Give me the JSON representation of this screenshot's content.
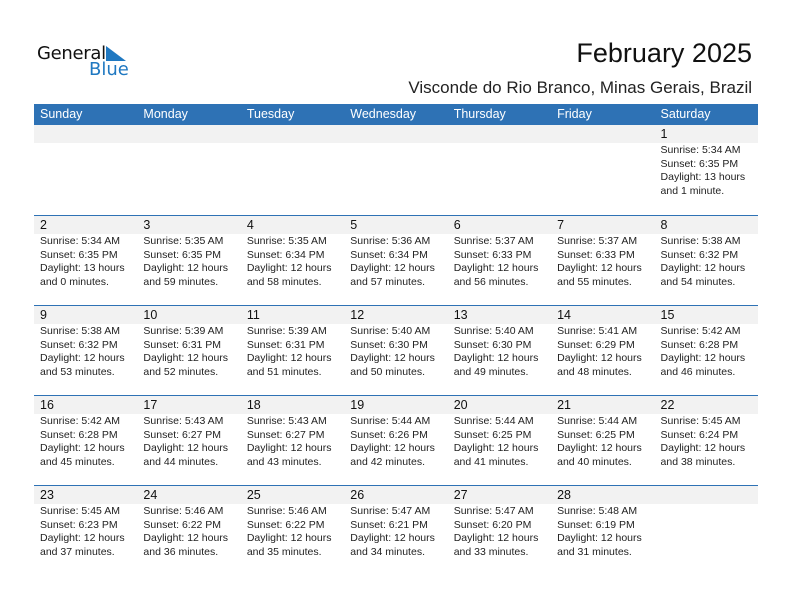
{
  "logo": {
    "word1": "General",
    "word2": "Blue",
    "accent": "#1f78c1"
  },
  "header": {
    "title": "February 2025",
    "location": "Visconde do Rio Branco, Minas Gerais, Brazil"
  },
  "colors": {
    "header_bg": "#2e72b5",
    "date_band": "#f2f2f2"
  },
  "weekdays": [
    "Sunday",
    "Monday",
    "Tuesday",
    "Wednesday",
    "Thursday",
    "Friday",
    "Saturday"
  ],
  "weeks": [
    [
      null,
      null,
      null,
      null,
      null,
      null,
      {
        "day": "1",
        "sunrise": "Sunrise: 5:34 AM",
        "sunset": "Sunset: 6:35 PM",
        "daylight1": "Daylight: 13 hours",
        "daylight2": "and 1 minute."
      }
    ],
    [
      {
        "day": "2",
        "sunrise": "Sunrise: 5:34 AM",
        "sunset": "Sunset: 6:35 PM",
        "daylight1": "Daylight: 13 hours",
        "daylight2": "and 0 minutes."
      },
      {
        "day": "3",
        "sunrise": "Sunrise: 5:35 AM",
        "sunset": "Sunset: 6:35 PM",
        "daylight1": "Daylight: 12 hours",
        "daylight2": "and 59 minutes."
      },
      {
        "day": "4",
        "sunrise": "Sunrise: 5:35 AM",
        "sunset": "Sunset: 6:34 PM",
        "daylight1": "Daylight: 12 hours",
        "daylight2": "and 58 minutes."
      },
      {
        "day": "5",
        "sunrise": "Sunrise: 5:36 AM",
        "sunset": "Sunset: 6:34 PM",
        "daylight1": "Daylight: 12 hours",
        "daylight2": "and 57 minutes."
      },
      {
        "day": "6",
        "sunrise": "Sunrise: 5:37 AM",
        "sunset": "Sunset: 6:33 PM",
        "daylight1": "Daylight: 12 hours",
        "daylight2": "and 56 minutes."
      },
      {
        "day": "7",
        "sunrise": "Sunrise: 5:37 AM",
        "sunset": "Sunset: 6:33 PM",
        "daylight1": "Daylight: 12 hours",
        "daylight2": "and 55 minutes."
      },
      {
        "day": "8",
        "sunrise": "Sunrise: 5:38 AM",
        "sunset": "Sunset: 6:32 PM",
        "daylight1": "Daylight: 12 hours",
        "daylight2": "and 54 minutes."
      }
    ],
    [
      {
        "day": "9",
        "sunrise": "Sunrise: 5:38 AM",
        "sunset": "Sunset: 6:32 PM",
        "daylight1": "Daylight: 12 hours",
        "daylight2": "and 53 minutes."
      },
      {
        "day": "10",
        "sunrise": "Sunrise: 5:39 AM",
        "sunset": "Sunset: 6:31 PM",
        "daylight1": "Daylight: 12 hours",
        "daylight2": "and 52 minutes."
      },
      {
        "day": "11",
        "sunrise": "Sunrise: 5:39 AM",
        "sunset": "Sunset: 6:31 PM",
        "daylight1": "Daylight: 12 hours",
        "daylight2": "and 51 minutes."
      },
      {
        "day": "12",
        "sunrise": "Sunrise: 5:40 AM",
        "sunset": "Sunset: 6:30 PM",
        "daylight1": "Daylight: 12 hours",
        "daylight2": "and 50 minutes."
      },
      {
        "day": "13",
        "sunrise": "Sunrise: 5:40 AM",
        "sunset": "Sunset: 6:30 PM",
        "daylight1": "Daylight: 12 hours",
        "daylight2": "and 49 minutes."
      },
      {
        "day": "14",
        "sunrise": "Sunrise: 5:41 AM",
        "sunset": "Sunset: 6:29 PM",
        "daylight1": "Daylight: 12 hours",
        "daylight2": "and 48 minutes."
      },
      {
        "day": "15",
        "sunrise": "Sunrise: 5:42 AM",
        "sunset": "Sunset: 6:28 PM",
        "daylight1": "Daylight: 12 hours",
        "daylight2": "and 46 minutes."
      }
    ],
    [
      {
        "day": "16",
        "sunrise": "Sunrise: 5:42 AM",
        "sunset": "Sunset: 6:28 PM",
        "daylight1": "Daylight: 12 hours",
        "daylight2": "and 45 minutes."
      },
      {
        "day": "17",
        "sunrise": "Sunrise: 5:43 AM",
        "sunset": "Sunset: 6:27 PM",
        "daylight1": "Daylight: 12 hours",
        "daylight2": "and 44 minutes."
      },
      {
        "day": "18",
        "sunrise": "Sunrise: 5:43 AM",
        "sunset": "Sunset: 6:27 PM",
        "daylight1": "Daylight: 12 hours",
        "daylight2": "and 43 minutes."
      },
      {
        "day": "19",
        "sunrise": "Sunrise: 5:44 AM",
        "sunset": "Sunset: 6:26 PM",
        "daylight1": "Daylight: 12 hours",
        "daylight2": "and 42 minutes."
      },
      {
        "day": "20",
        "sunrise": "Sunrise: 5:44 AM",
        "sunset": "Sunset: 6:25 PM",
        "daylight1": "Daylight: 12 hours",
        "daylight2": "and 41 minutes."
      },
      {
        "day": "21",
        "sunrise": "Sunrise: 5:44 AM",
        "sunset": "Sunset: 6:25 PM",
        "daylight1": "Daylight: 12 hours",
        "daylight2": "and 40 minutes."
      },
      {
        "day": "22",
        "sunrise": "Sunrise: 5:45 AM",
        "sunset": "Sunset: 6:24 PM",
        "daylight1": "Daylight: 12 hours",
        "daylight2": "and 38 minutes."
      }
    ],
    [
      {
        "day": "23",
        "sunrise": "Sunrise: 5:45 AM",
        "sunset": "Sunset: 6:23 PM",
        "daylight1": "Daylight: 12 hours",
        "daylight2": "and 37 minutes."
      },
      {
        "day": "24",
        "sunrise": "Sunrise: 5:46 AM",
        "sunset": "Sunset: 6:22 PM",
        "daylight1": "Daylight: 12 hours",
        "daylight2": "and 36 minutes."
      },
      {
        "day": "25",
        "sunrise": "Sunrise: 5:46 AM",
        "sunset": "Sunset: 6:22 PM",
        "daylight1": "Daylight: 12 hours",
        "daylight2": "and 35 minutes."
      },
      {
        "day": "26",
        "sunrise": "Sunrise: 5:47 AM",
        "sunset": "Sunset: 6:21 PM",
        "daylight1": "Daylight: 12 hours",
        "daylight2": "and 34 minutes."
      },
      {
        "day": "27",
        "sunrise": "Sunrise: 5:47 AM",
        "sunset": "Sunset: 6:20 PM",
        "daylight1": "Daylight: 12 hours",
        "daylight2": "and 33 minutes."
      },
      {
        "day": "28",
        "sunrise": "Sunrise: 5:48 AM",
        "sunset": "Sunset: 6:19 PM",
        "daylight1": "Daylight: 12 hours",
        "daylight2": "and 31 minutes."
      },
      null
    ]
  ]
}
